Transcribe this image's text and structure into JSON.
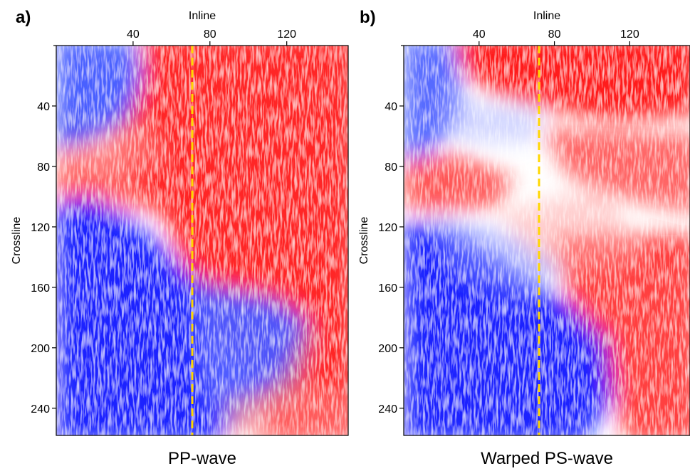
{
  "chart_data": [
    {
      "type": "heatmap",
      "panel_label": "a)",
      "title": "PP-wave",
      "xlabel": "Inline",
      "ylabel": "Crossline",
      "x_ticks": [
        40,
        80,
        120
      ],
      "y_ticks": [
        40,
        80,
        120,
        160,
        200,
        240
      ],
      "xlim": [
        0,
        152
      ],
      "ylim": [
        0,
        258
      ],
      "x_axis_position": "top",
      "y_axis_reversed": true,
      "colormap": [
        "#0000ff",
        "#ffffff",
        "#ff0000"
      ],
      "marker_line": {
        "inline": 71,
        "color": "#ffd700",
        "style": "dashed"
      },
      "field_regions": [
        {
          "region": "upper-left",
          "polarity": "negative"
        },
        {
          "region": "upper-right",
          "polarity": "positive"
        },
        {
          "region": "middle band",
          "polarity": "positive"
        },
        {
          "region": "lower-left",
          "polarity": "negative"
        },
        {
          "region": "lower-right",
          "polarity": "positive"
        }
      ]
    },
    {
      "type": "heatmap",
      "panel_label": "b)",
      "title": "Warped PS-wave",
      "xlabel": "Inline",
      "ylabel": "Crossline",
      "x_ticks": [
        40,
        80,
        120
      ],
      "y_ticks": [
        40,
        80,
        120,
        160,
        200,
        240
      ],
      "xlim": [
        0,
        152
      ],
      "ylim": [
        0,
        258
      ],
      "x_axis_position": "top",
      "y_axis_reversed": true,
      "colormap": [
        "#0000ff",
        "#ffffff",
        "#ff0000"
      ],
      "marker_line": {
        "inline": 71,
        "color": "#ffd700",
        "style": "dashed"
      },
      "field_regions": [
        {
          "region": "upper-left",
          "polarity": "negative"
        },
        {
          "region": "top",
          "polarity": "positive"
        },
        {
          "region": "middle",
          "polarity": "mixed"
        },
        {
          "region": "lower-left",
          "polarity": "negative"
        },
        {
          "region": "lower-right",
          "polarity": "positive"
        }
      ]
    }
  ]
}
